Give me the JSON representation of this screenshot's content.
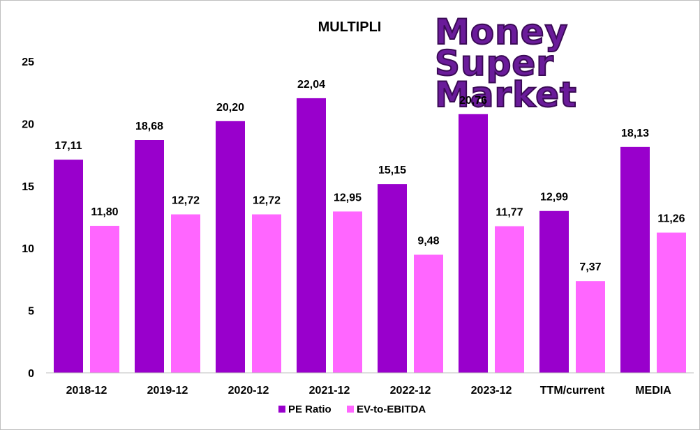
{
  "chart_data": {
    "type": "bar",
    "title": "MULTIPLI",
    "categories": [
      "2018-12",
      "2019-12",
      "2020-12",
      "2021-12",
      "2022-12",
      "2023-12",
      "TTM/current",
      "MEDIA"
    ],
    "series": [
      {
        "name": "PE Ratio",
        "color": "#9900cc",
        "values": [
          17.11,
          18.68,
          20.2,
          22.04,
          15.15,
          20.76,
          12.99,
          18.13
        ],
        "labels": [
          "17,11",
          "18,68",
          "20,20",
          "22,04",
          "15,15",
          "20,76",
          "12,99",
          "18,13"
        ]
      },
      {
        "name": "EV-to-EBITDA",
        "color": "#ff66ff",
        "values": [
          11.8,
          12.72,
          12.72,
          12.95,
          9.48,
          11.77,
          7.37,
          11.26
        ],
        "labels": [
          "11,80",
          "12,72",
          "12,72",
          "12,95",
          "9,48",
          "11,77",
          "7,37",
          "11,26"
        ]
      }
    ],
    "ylim": [
      0,
      25
    ],
    "yticks": [
      0,
      5,
      10,
      15,
      20,
      25
    ],
    "grid": false,
    "legend_position": "bottom"
  },
  "logo": {
    "lines": [
      "Money",
      "Super",
      "Market"
    ],
    "color": "#6a1b9a"
  }
}
